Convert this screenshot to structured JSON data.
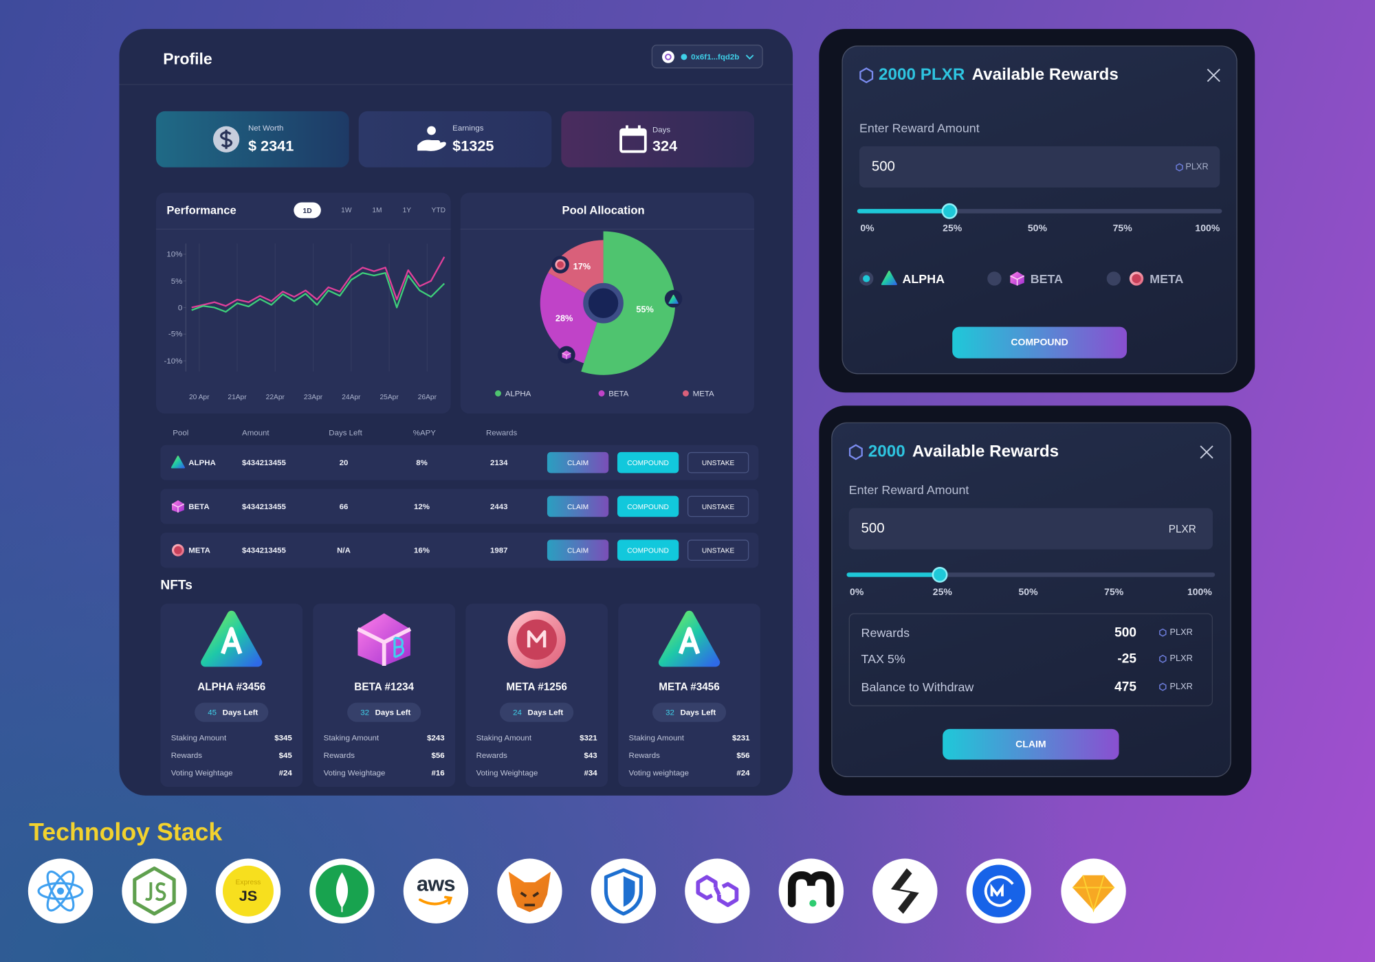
{
  "header": {
    "title": "Profile",
    "wallet": "0x6f1...fqd2b"
  },
  "stats": [
    {
      "label": "Net Worth",
      "value": "$ 2341"
    },
    {
      "label": "Earnings",
      "value": "$1325"
    },
    {
      "label": "Days",
      "value": "324"
    }
  ],
  "performance": {
    "type": "line",
    "title": "Performance",
    "ranges": [
      "1D",
      "1W",
      "1M",
      "1Y",
      "YTD"
    ],
    "xlim": [
      -0.35,
      6.55
    ],
    "xticks": [
      {
        "value": 0,
        "label": "20 Apr"
      },
      {
        "value": 1,
        "label": "21Apr"
      },
      {
        "value": 2,
        "label": "22Apr"
      },
      {
        "value": 3,
        "label": "23Apr"
      },
      {
        "value": 4,
        "label": "24Apr"
      },
      {
        "value": 5,
        "label": "25Apr"
      },
      {
        "value": 6,
        "label": "26Apr"
      }
    ],
    "ylim": [
      -12,
      12
    ],
    "yticks": [
      {
        "value": 10,
        "label": "10%"
      },
      {
        "value": 5,
        "label": "5%"
      },
      0,
      {
        "value": -5,
        "label": "-5%"
      },
      {
        "value": -10,
        "label": "-10%"
      }
    ],
    "x": [
      -0.2,
      0.1,
      0.4,
      0.7,
      1.0,
      1.3,
      1.6,
      1.9,
      2.2,
      2.5,
      2.8,
      3.1,
      3.4,
      3.7,
      4.0,
      4.3,
      4.6,
      4.9,
      5.2,
      5.5,
      5.8,
      6.1,
      6.45
    ],
    "series": [
      {
        "color": "#e0409a",
        "values": [
          0,
          0.5,
          1,
          0.3,
          1.5,
          1,
          2.2,
          1.2,
          3,
          2,
          3.2,
          1.5,
          3.8,
          3,
          6,
          7.5,
          6.8,
          7.5,
          1.5,
          7,
          4,
          5,
          9.5
        ]
      },
      {
        "color": "#3ecf7a",
        "values": [
          -0.5,
          0.3,
          0,
          -0.8,
          0.8,
          0.2,
          1.6,
          0.5,
          2.5,
          1.2,
          2.6,
          0.5,
          3.2,
          2.2,
          5.2,
          6.5,
          6,
          6.5,
          0,
          6,
          3.2,
          2,
          4.5
        ]
      }
    ]
  },
  "pool": {
    "type": "pie",
    "title": "Pool Allocation",
    "categories": [
      "ALPHA",
      "BETA",
      "META"
    ],
    "values": [
      55,
      28,
      17
    ],
    "value_labels": [
      "55%",
      "28%",
      "17%"
    ],
    "colors": [
      "#4fc46f",
      "#c043c8",
      "#d9607a"
    ]
  },
  "table": {
    "columns": [
      "Pool",
      "Amount",
      "Days Left",
      "%APY",
      "Rewards"
    ],
    "rows": [
      [
        "ALPHA",
        "$434213455",
        "20",
        "8%",
        "2134"
      ],
      [
        "BETA",
        "$434213455",
        "66",
        "12%",
        "2443"
      ],
      [
        "META",
        "$434213455",
        "N/A",
        "16%",
        "1987"
      ]
    ],
    "actions": [
      "CLAIM",
      "COMPOUND",
      "UNSTAKE"
    ]
  },
  "nfts": {
    "title": "NFTs",
    "days_label": "Days Left",
    "cards": [
      {
        "name": "ALPHA #3456",
        "days": "45",
        "rows": [
          [
            "Staking Amount",
            "$345"
          ],
          [
            "Rewards",
            "$45"
          ],
          [
            "Voting Weightage",
            "#24"
          ]
        ]
      },
      {
        "name": "BETA #1234",
        "days": "32",
        "rows": [
          [
            "Staking Amount",
            "$243"
          ],
          [
            "Rewards",
            "$56"
          ],
          [
            "Voting Weightage",
            "#16"
          ]
        ]
      },
      {
        "name": "META #1256",
        "days": "24",
        "rows": [
          [
            "Staking Amount",
            "$321"
          ],
          [
            "Rewards",
            "$43"
          ],
          [
            "Voting Weightage",
            "#34"
          ]
        ]
      },
      {
        "name": "META #3456",
        "days": "32",
        "rows": [
          [
            "Staking Amount",
            "$231"
          ],
          [
            "Rewards",
            "$56"
          ],
          [
            "Voting weightage",
            "#24"
          ]
        ]
      }
    ]
  },
  "compound_modal": {
    "amount": "2000 PLXR",
    "title": "Available Rewards",
    "label": "Enter Reward Amount",
    "input": "500",
    "unit": "PLXR",
    "slider": {
      "value": 25,
      "ticks": [
        {
          "value": 0,
          "label": "0%"
        },
        {
          "value": 25,
          "label": "25%"
        },
        {
          "value": 50,
          "label": "50%"
        },
        {
          "value": 75,
          "label": "75%"
        },
        {
          "value": 100,
          "label": "100%"
        }
      ]
    },
    "pools": [
      "ALPHA",
      "BETA",
      "META"
    ],
    "button": "COMPOUND"
  },
  "claim_modal": {
    "amount": "2000",
    "title": "Available Rewards",
    "label": "Enter Reward Amount",
    "input": "500",
    "unit": "PLXR",
    "slider": {
      "value": 25,
      "ticks": [
        {
          "value": 0,
          "label": "0%"
        },
        {
          "value": 25,
          "label": "25%"
        },
        {
          "value": 50,
          "label": "50%"
        },
        {
          "value": 75,
          "label": "75%"
        },
        {
          "value": 100,
          "label": "100%"
        }
      ]
    },
    "summary": [
      {
        "label": "Rewards",
        "value": "500",
        "unit": "PLXR"
      },
      {
        "label": "TAX 5%",
        "value": "-25",
        "unit": "PLXR"
      },
      {
        "label": "Balance to Withdraw",
        "value": "475",
        "unit": "PLXR"
      }
    ],
    "button": "CLAIM"
  },
  "tech_stack": {
    "title": "Technoloy Stack",
    "logo_texts": {
      "express": "Express",
      "js": "JS",
      "aws": "aws"
    }
  }
}
